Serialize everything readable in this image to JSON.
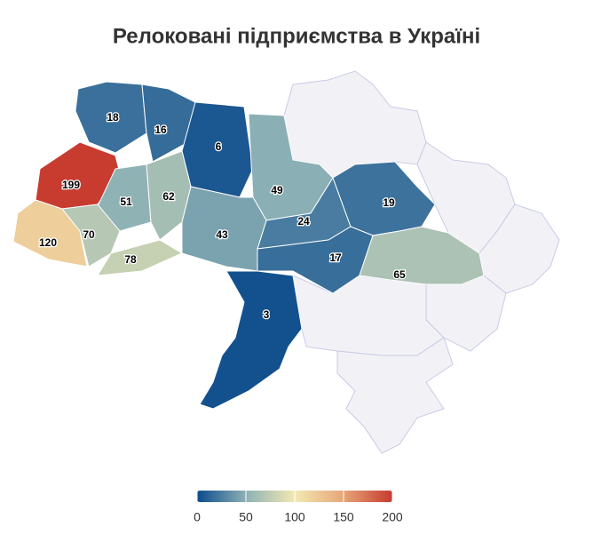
{
  "chart_data": {
    "type": "choropleth",
    "title": "Релоковані підприємства в Україні",
    "values": [
      18,
      16,
      6,
      49,
      199,
      51,
      62,
      24,
      19,
      120,
      70,
      43,
      78,
      17,
      65,
      3
    ],
    "colors": [
      "#0b4b8c",
      "#8db1b5",
      "#f3e9b2",
      "#e6a677",
      "#c73a2f"
    ],
    "clim": [
      0,
      200
    ],
    "cticks": [
      0,
      50,
      100,
      150,
      200
    ]
  }
}
